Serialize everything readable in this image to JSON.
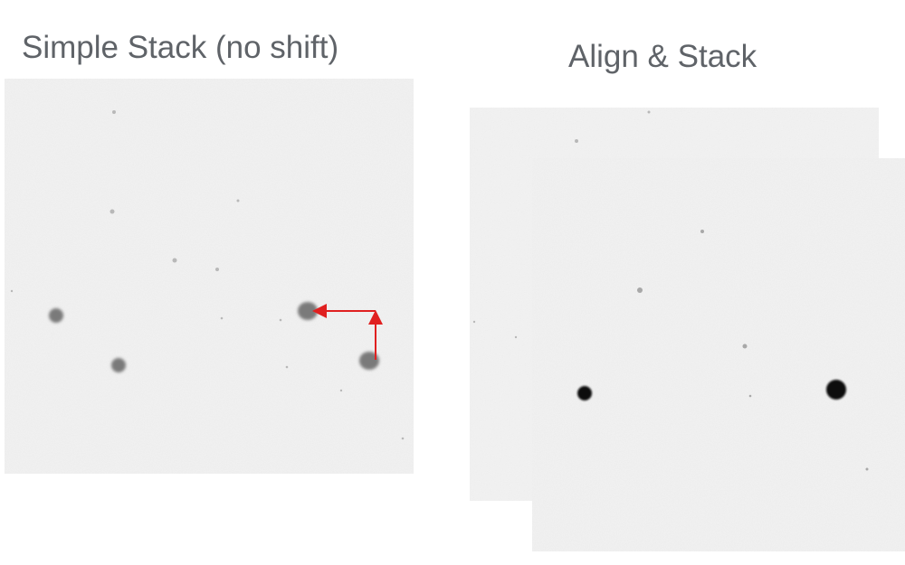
{
  "titles": {
    "left": "Simple Stack (no shift)",
    "right": "Align & Stack"
  },
  "colors": {
    "title_text": "#5f6368",
    "frame_background": "#f1f1f1",
    "star_blurred": "#7a7a7a",
    "star_aligned": "#0a0a0a",
    "arrow": "#e02020"
  },
  "panels": {
    "simple_stack": {
      "stars": "blurred-offset",
      "shift_arrows": [
        "arrow-up",
        "arrow-left"
      ]
    },
    "align_stack": {
      "frames": 2,
      "stars": "sharp-aligned"
    }
  }
}
